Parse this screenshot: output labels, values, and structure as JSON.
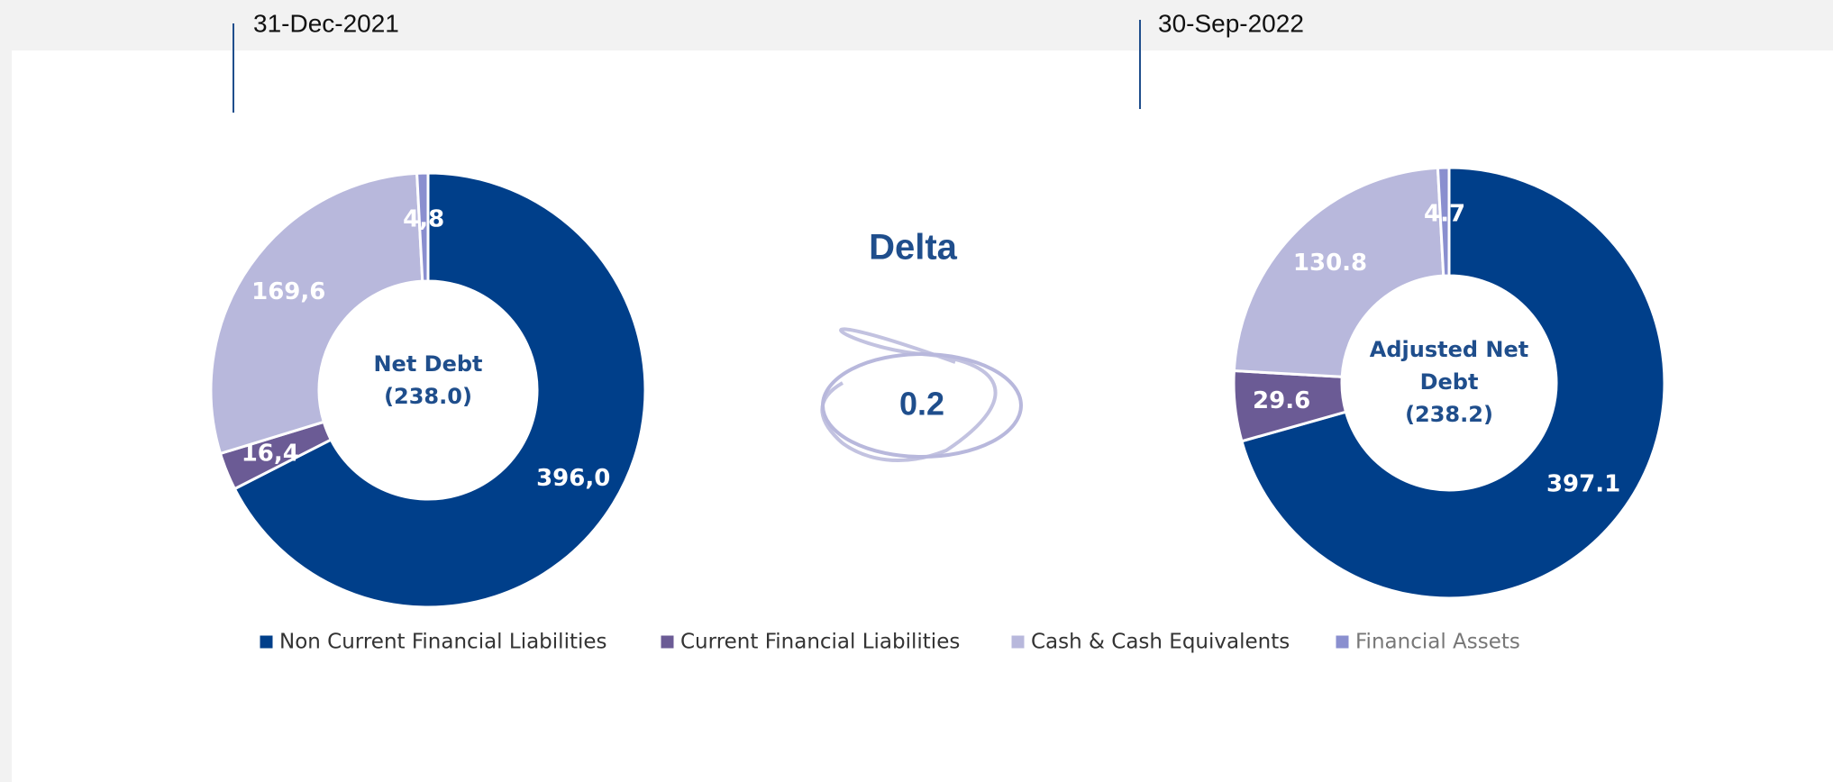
{
  "chart_data": [
    {
      "type": "donut",
      "date": "31-Dec-2021",
      "center_label": [
        "Net Debt",
        "(238.0)"
      ],
      "categories": [
        "Non Current Financial Liabilities",
        "Current Financial Liabilities",
        "Cash & Cash Equivalents",
        "Financial Assets"
      ],
      "values": [
        396.0,
        16.4,
        169.6,
        4.8
      ],
      "value_labels": [
        "396,0",
        "16,4",
        "169,6",
        "4,8"
      ],
      "colors": [
        "#003f8a",
        "#6b5b95",
        "#b8b8dc",
        "#8a8fcf"
      ]
    },
    {
      "type": "donut",
      "date": "30-Sep-2022",
      "center_label": [
        "Adjusted Net",
        "Debt",
        "(238.2)"
      ],
      "categories": [
        "Non Current Financial Liabilities",
        "Current Financial Liabilities",
        "Cash & Cash Equivalents",
        "Financial Assets"
      ],
      "values": [
        397.1,
        29.6,
        130.8,
        4.7
      ],
      "value_labels": [
        "397.1",
        "29.6",
        "130.8",
        "4.7"
      ],
      "colors": [
        "#003f8a",
        "#6b5b95",
        "#b8b8dc",
        "#8a8fcf"
      ]
    }
  ],
  "delta": {
    "title": "Delta",
    "value": "0.2"
  }
}
